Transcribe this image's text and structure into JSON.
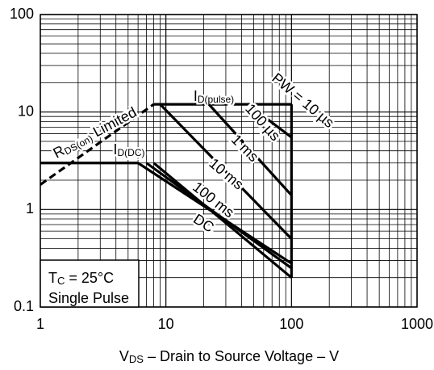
{
  "chart_data": {
    "type": "line",
    "xlabel": {
      "main": "V",
      "sub": "DS",
      "rest": " – Drain to Source Voltage – V"
    },
    "log_x": true,
    "log_y": true,
    "grid": true,
    "minor_grid": true,
    "xlim": [
      1,
      1000
    ],
    "xticks": [
      1,
      10,
      100,
      1000
    ],
    "ylim": [
      0.1,
      100
    ],
    "yticks": [
      0.1,
      1,
      10,
      100
    ],
    "color": "#000000",
    "series": [
      {
        "x": [
          1,
          8
        ],
        "values": [
          1.8,
          12
        ],
        "dashed": true,
        "label": {
          "main": "R",
          "sub": "DS(on)",
          "rest": " Limited"
        }
      },
      {
        "x": [
          8,
          100
        ],
        "values": [
          12,
          12
        ],
        "label": {
          "main": "I",
          "sub": "D(pulse)",
          "rest": ""
        }
      },
      {
        "x": [
          1,
          6
        ],
        "values": [
          3,
          3
        ],
        "label": {
          "main": "I",
          "sub": "D(DC)",
          "rest": ""
        }
      },
      {
        "x": [
          45,
          100
        ],
        "values": [
          12,
          5.5
        ],
        "label": {
          "main": "PW = 10 µs",
          "sub": "",
          "rest": ""
        }
      },
      {
        "x": [
          22,
          100
        ],
        "values": [
          12,
          1.4
        ],
        "label": {
          "main": "100 µs",
          "sub": "",
          "rest": ""
        }
      },
      {
        "x": [
          9,
          100
        ],
        "values": [
          12,
          0.5
        ],
        "label": {
          "main": "1 ms",
          "sub": "",
          "rest": ""
        }
      },
      {
        "x": [
          6,
          100
        ],
        "values": [
          3,
          0.28
        ],
        "label": {
          "main": "10 ms",
          "sub": "",
          "rest": ""
        }
      },
      {
        "x": [
          7,
          100
        ],
        "values": [
          3,
          0.25
        ],
        "label": {
          "main": "100 ms",
          "sub": "",
          "rest": ""
        }
      },
      {
        "x": [
          8,
          100
        ],
        "values": [
          3,
          0.2
        ],
        "label": {
          "main": "DC",
          "sub": "",
          "rest": ""
        }
      },
      {
        "x": [
          100,
          100
        ],
        "values": [
          12,
          0.2
        ]
      }
    ],
    "annotation": {
      "line1": {
        "main": "T",
        "sub": "C",
        "rest": " = 25°C"
      },
      "line2": "Single Pulse"
    }
  }
}
